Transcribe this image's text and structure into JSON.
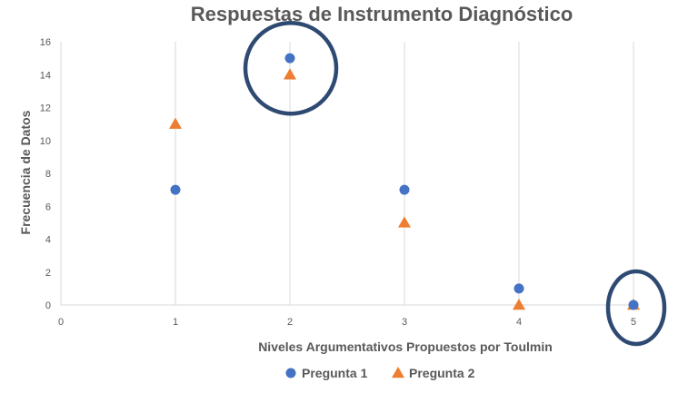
{
  "chart_data": {
    "type": "scatter",
    "title": "Respuestas de Instrumento Diagnóstico",
    "xlabel": "Niveles Argumentativos Propuestos por Toulmin",
    "ylabel": "Frecuencia de Datos",
    "xlim": [
      0,
      5
    ],
    "ylim": [
      0,
      16
    ],
    "x_ticks": [
      "0",
      "1",
      "2",
      "3",
      "4",
      "5"
    ],
    "y_ticks": [
      "0",
      "2",
      "4",
      "6",
      "8",
      "10",
      "12",
      "14",
      "16"
    ],
    "grid": "vertical",
    "legend_position": "bottom",
    "series": [
      {
        "name": "Pregunta 1",
        "marker": "circle",
        "color": "#4472C4",
        "points": [
          {
            "x": 1,
            "y": 7
          },
          {
            "x": 2,
            "y": 15
          },
          {
            "x": 3,
            "y": 7
          },
          {
            "x": 4,
            "y": 1
          },
          {
            "x": 5,
            "y": 0
          }
        ]
      },
      {
        "name": "Pregunta 2",
        "marker": "triangle",
        "color": "#ED7D31",
        "points": [
          {
            "x": 1,
            "y": 11
          },
          {
            "x": 2,
            "y": 14
          },
          {
            "x": 3,
            "y": 5
          },
          {
            "x": 4,
            "y": 0
          },
          {
            "x": 5,
            "y": 0
          }
        ]
      }
    ],
    "highlights": [
      {
        "x": 2,
        "y": 14.5,
        "shape": "circle-outline",
        "color": "#2F4A72"
      },
      {
        "x": 5,
        "y": 0,
        "shape": "ellipse-outline",
        "color": "#2F4A72"
      }
    ]
  }
}
